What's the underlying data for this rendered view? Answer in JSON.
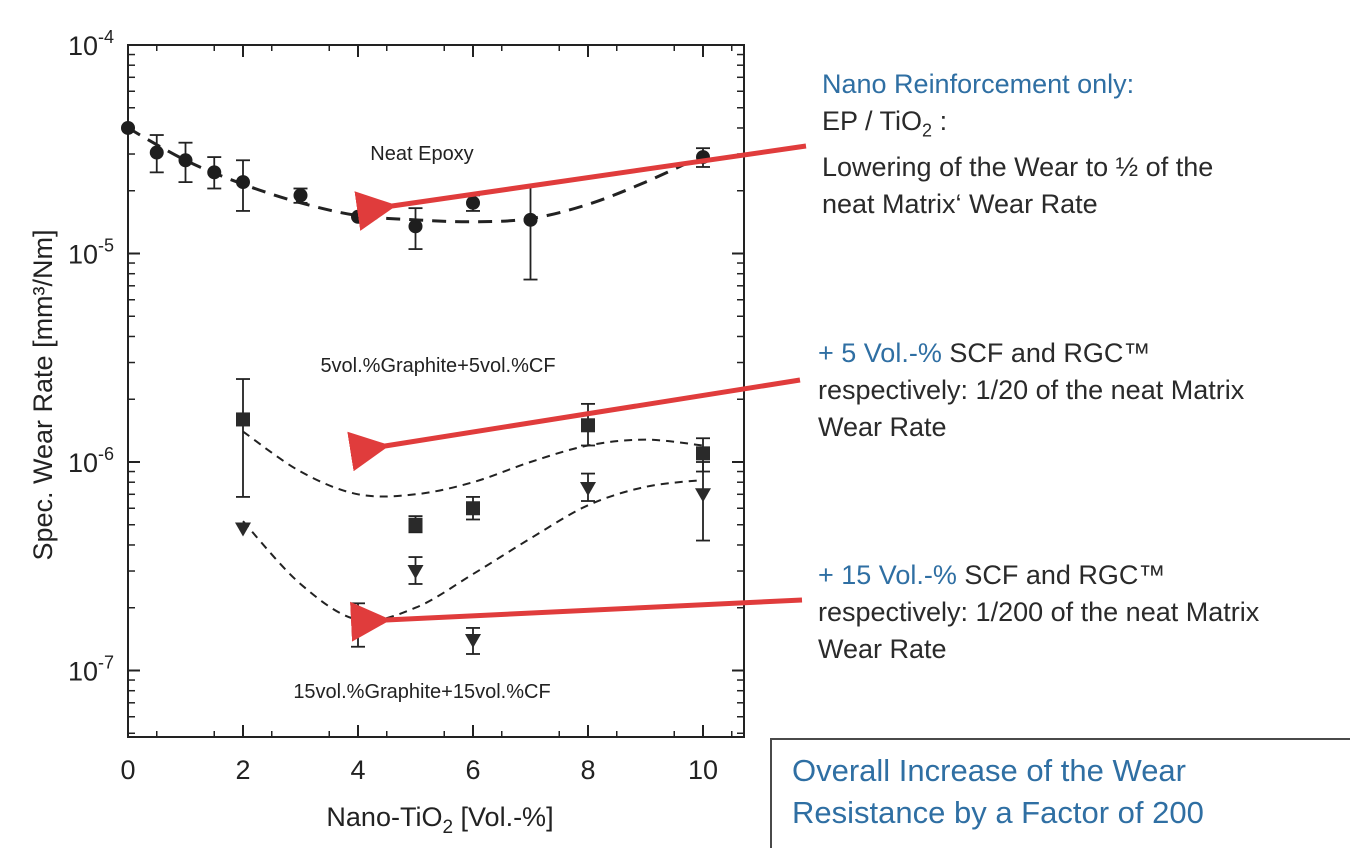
{
  "chart_data": {
    "type": "scatter",
    "xlabel": "Nano-TiO",
    "xlabel_sub": "2",
    "xlabel_unit": " [Vol.-%]",
    "ylabel": "Spec. Wear Rate [mm³/Nm]",
    "xlim": [
      0,
      11
    ],
    "ylim": [
      5e-08,
      0.0001
    ],
    "yscale": "log",
    "x_ticks": [
      "0",
      "2",
      "4",
      "6",
      "8",
      "10"
    ],
    "y_ticks": [
      {
        "base": "10",
        "exp": "-4"
      },
      {
        "base": "10",
        "exp": "-5"
      },
      {
        "base": "10",
        "exp": "-6"
      },
      {
        "base": "10",
        "exp": "-7"
      }
    ],
    "series_labels": [
      {
        "key": "neat",
        "text": "Neat Epoxy"
      },
      {
        "key": "g5",
        "text": "5vol.%Graphite+5vol.%CF"
      },
      {
        "key": "g15",
        "text": "15vol.%Graphite+15vol.%CF"
      }
    ],
    "series": [
      {
        "marker": "circle",
        "points": [
          {
            "x": 0,
            "y": 4e-05,
            "lo": 4e-05,
            "hi": 4e-05
          },
          {
            "x": 0.5,
            "y": 3.05e-05,
            "lo": 2.45e-05,
            "hi": 3.7e-05
          },
          {
            "x": 1,
            "y": 2.8e-05,
            "lo": 2.2e-05,
            "hi": 3.4e-05
          },
          {
            "x": 1.5,
            "y": 2.45e-05,
            "lo": 2.05e-05,
            "hi": 2.9e-05
          },
          {
            "x": 2,
            "y": 2.2e-05,
            "lo": 1.6e-05,
            "hi": 2.8e-05
          },
          {
            "x": 3,
            "y": 1.9e-05,
            "lo": 1.75e-05,
            "hi": 2.05e-05
          },
          {
            "x": 4,
            "y": 1.5e-05,
            "lo": 1.5e-05,
            "hi": 1.5e-05
          },
          {
            "x": 5,
            "y": 1.35e-05,
            "lo": 1.05e-05,
            "hi": 1.65e-05
          },
          {
            "x": 6,
            "y": 1.75e-05,
            "lo": 1.6e-05,
            "hi": 1.9e-05
          },
          {
            "x": 7,
            "y": 1.45e-05,
            "lo": 7.5e-06,
            "hi": 2.1e-05
          },
          {
            "x": 10,
            "y": 2.9e-05,
            "lo": 2.6e-05,
            "hi": 3.2e-05
          }
        ],
        "fit": {
          "x": [
            0,
            1,
            2,
            3,
            4,
            5,
            6,
            7,
            8,
            9,
            10
          ],
          "y": [
            4e-05,
            2.8e-05,
            2.15e-05,
            1.75e-05,
            1.52e-05,
            1.45e-05,
            1.42e-05,
            1.47e-05,
            1.72e-05,
            2.2e-05,
            2.95e-05
          ]
        }
      },
      {
        "marker": "square",
        "points": [
          {
            "x": 2,
            "y": 1.6e-06,
            "lo": 6.8e-07,
            "hi": 2.5e-06
          },
          {
            "x": 4,
            "y": 1.15e-06,
            "lo": 1.15e-06,
            "hi": 1.15e-06
          },
          {
            "x": 5,
            "y": 5e-07,
            "lo": 4.6e-07,
            "hi": 5.5e-07
          },
          {
            "x": 6,
            "y": 6e-07,
            "lo": 5.3e-07,
            "hi": 6.8e-07
          },
          {
            "x": 8,
            "y": 1.5e-06,
            "lo": 1.2e-06,
            "hi": 1.9e-06
          },
          {
            "x": 10,
            "y": 1.1e-06,
            "lo": 9e-07,
            "hi": 1.3e-06
          }
        ],
        "fit": {
          "x": [
            2,
            3,
            4,
            5,
            6,
            7,
            8,
            9,
            10
          ],
          "y": [
            1.4e-06,
            9e-07,
            7e-07,
            7e-07,
            8e-07,
            1e-06,
            1.2e-06,
            1.28e-06,
            1.2e-06
          ]
        }
      },
      {
        "marker": "triangle-down",
        "points": [
          {
            "x": 2,
            "y": 4.8e-07,
            "lo": 4.8e-07,
            "hi": 4.8e-07
          },
          {
            "x": 4,
            "y": 1.7e-07,
            "lo": 1.3e-07,
            "hi": 2.1e-07
          },
          {
            "x": 5,
            "y": 3e-07,
            "lo": 2.6e-07,
            "hi": 3.5e-07
          },
          {
            "x": 6,
            "y": 1.4e-07,
            "lo": 1.2e-07,
            "hi": 1.6e-07
          },
          {
            "x": 8,
            "y": 7.5e-07,
            "lo": 6.5e-07,
            "hi": 8.8e-07
          },
          {
            "x": 10,
            "y": 7e-07,
            "lo": 4.2e-07,
            "hi": 1e-06
          }
        ],
        "fit": {
          "x": [
            2,
            3,
            4,
            5,
            6,
            7,
            8,
            9,
            10
          ],
          "y": [
            5.2e-07,
            2.6e-07,
            1.75e-07,
            2e-07,
            2.9e-07,
            4.3e-07,
            6.2e-07,
            7.6e-07,
            8.2e-07
          ]
        }
      }
    ]
  },
  "annotations": {
    "nano": {
      "title": "Nano Reinforcement only:",
      "line1_pre": "EP / TiO",
      "line1_sub": "2",
      "line1_post": " :",
      "line2": "Lowering of the Wear to ½ of the",
      "line3": "neat Matrix‘ Wear Rate"
    },
    "scf5": {
      "highlight": "+ 5 Vol.-%",
      "rest": " SCF and RGC™",
      "line2": "respectively: 1/20 of the neat Matrix",
      "line3": "Wear Rate"
    },
    "scf15": {
      "highlight": "+ 15 Vol.-%",
      "rest": " SCF and RGC™",
      "line2": "respectively: 1/200 of the neat Matrix",
      "line3": "Wear Rate"
    },
    "overall": {
      "line1": "Overall Increase of the Wear",
      "line2": "Resistance by a Factor of 200"
    }
  },
  "colors": {
    "arrow": "#e03c3c",
    "accent": "#2f6fa3",
    "ink": "#1a1a1a"
  }
}
